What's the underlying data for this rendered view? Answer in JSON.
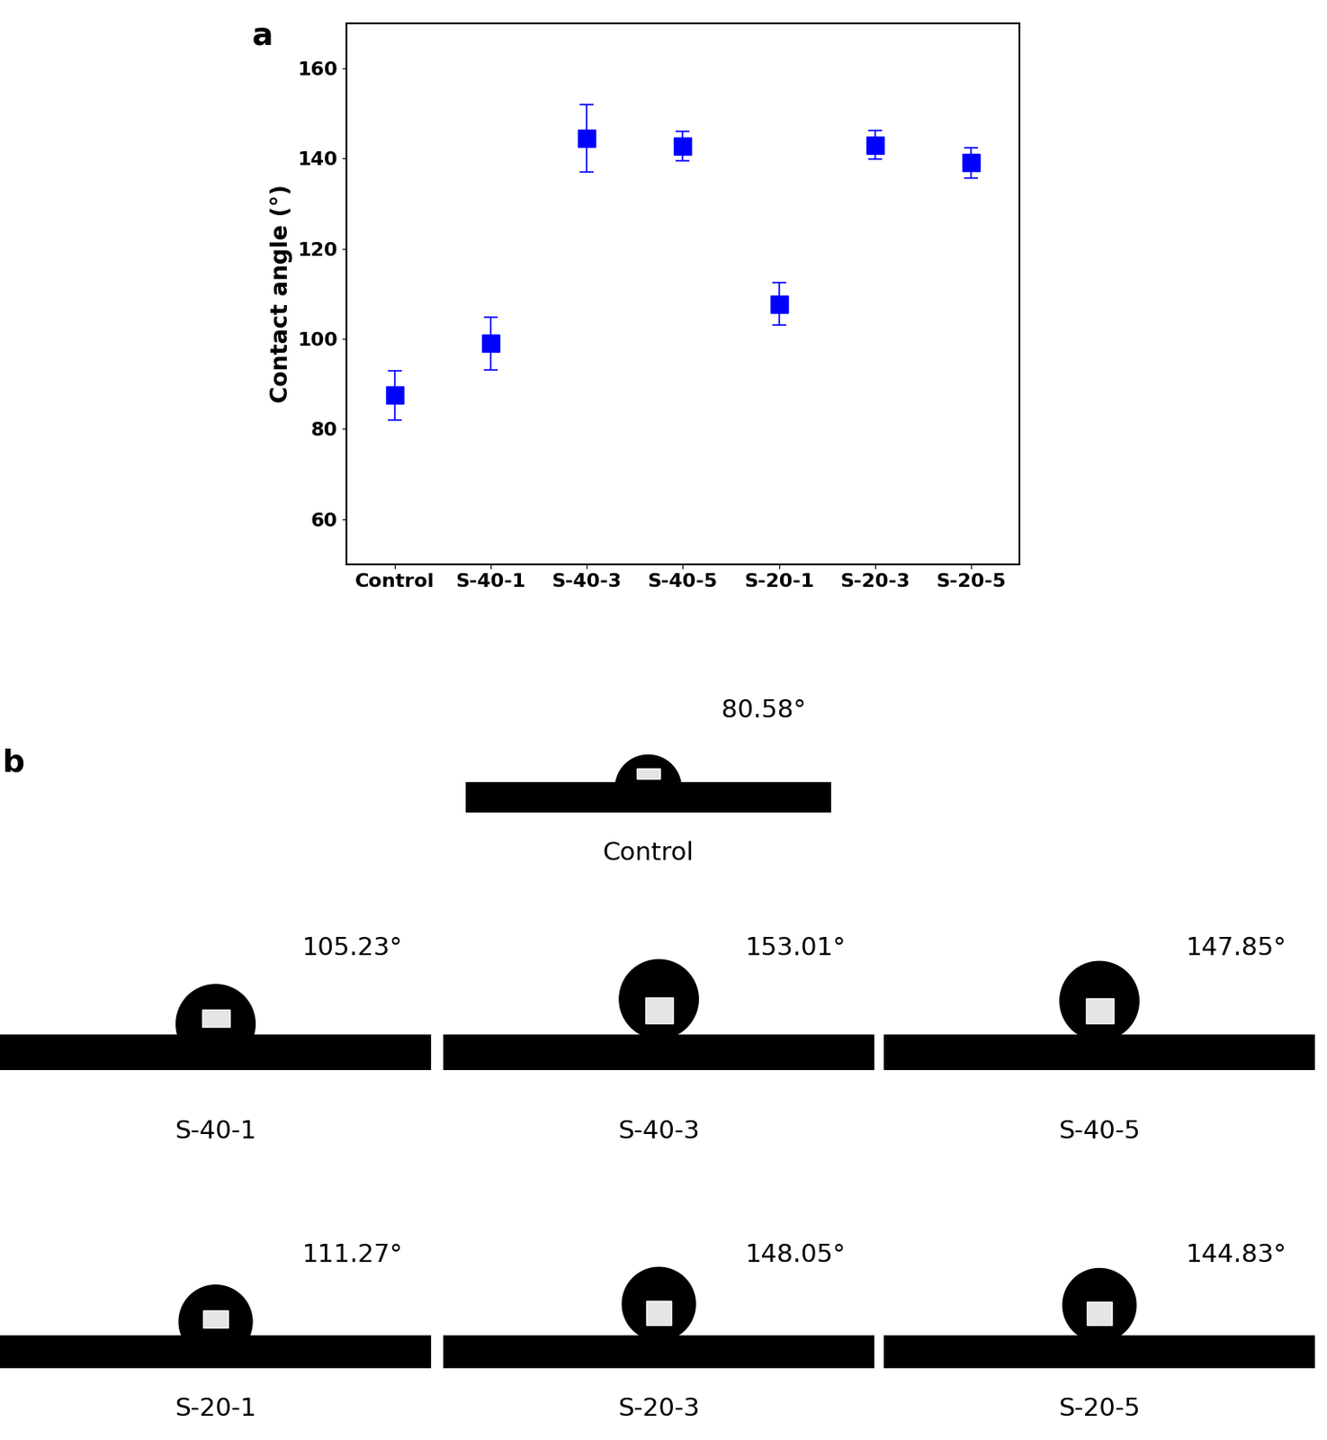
{
  "chart_data": {
    "type": "scatter",
    "panel_label": "a",
    "y_label": "Contact angle (°)",
    "categories": [
      "Control",
      "S-40-1",
      "S-40-3",
      "S-40-5",
      "S-20-1",
      "S-20-3",
      "S-20-5"
    ],
    "values": [
      87.5,
      99,
      144.5,
      142.7,
      107.7,
      143,
      139
    ],
    "errors": [
      5.5,
      5.8,
      7.5,
      3.3,
      4.7,
      3.1,
      3.4
    ],
    "color": "#0000ff",
    "marker": "s",
    "ylim": [
      50,
      170
    ],
    "yticks": [
      60,
      80,
      100,
      120,
      140,
      160
    ],
    "grid": false
  },
  "images": {
    "panel_label": "b",
    "items": [
      {
        "label": "Control",
        "angle": 80.58,
        "angle_label": "80.58°"
      },
      {
        "label": "S-40-1",
        "angle": 105.23,
        "angle_label": "105.23°"
      },
      {
        "label": "S-40-3",
        "angle": 153.01,
        "angle_label": "153.01°"
      },
      {
        "label": "S-40-5",
        "angle": 147.85,
        "angle_label": "147.85°"
      },
      {
        "label": "S-20-1",
        "angle": 111.27,
        "angle_label": "111.27°"
      },
      {
        "label": "S-20-3",
        "angle": 148.05,
        "angle_label": "148.05°"
      },
      {
        "label": "S-20-5",
        "angle": 144.83,
        "angle_label": "144.83°"
      }
    ]
  }
}
